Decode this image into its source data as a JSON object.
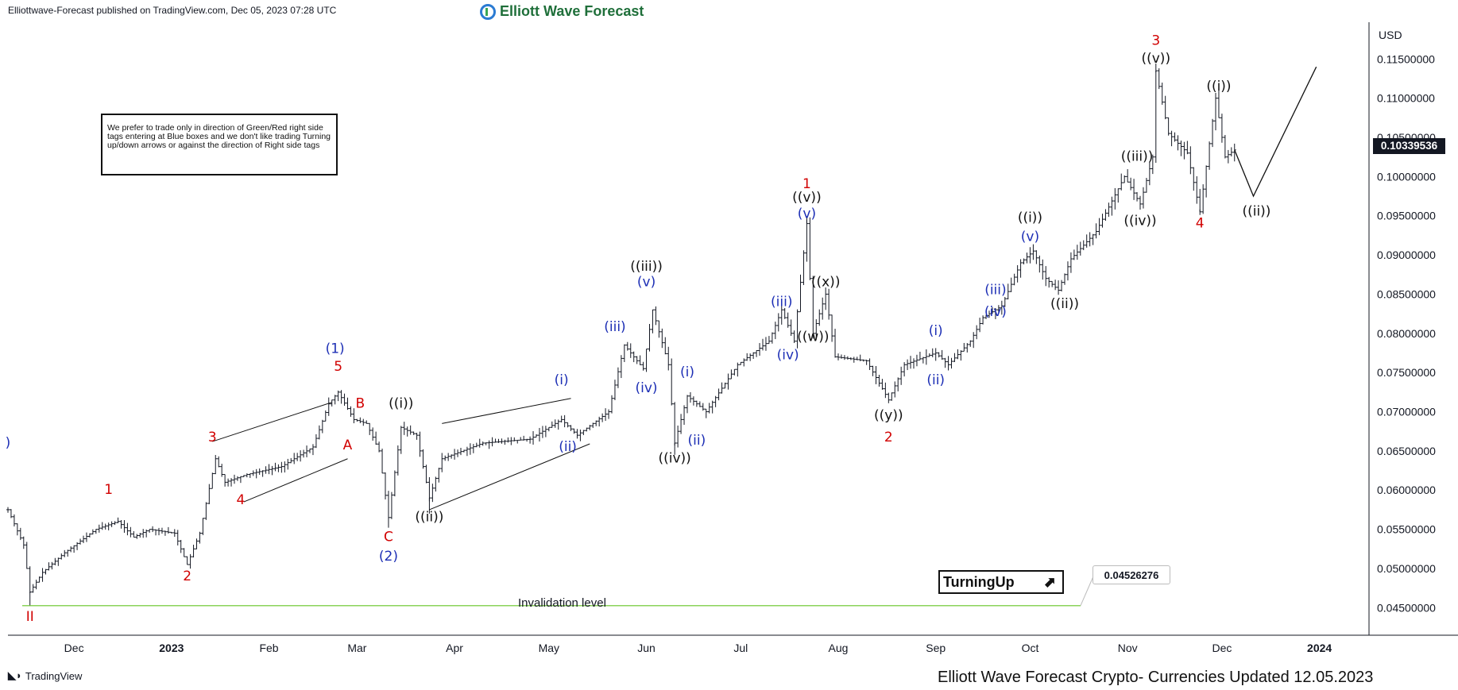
{
  "header": {
    "published_text": "Elliottwave-Forecast published on TradingView.com, Dec 05, 2023 07:28 UTC",
    "logo_text": "Elliott Wave Forecast"
  },
  "note_text": "We prefer to trade only in direction of Green/Red right side tags entering at Blue boxes and we don't like trading Turning up/down arrows or against the direction of Right side tags",
  "turning_label": "TurningUp",
  "invalidation": {
    "label": "Invalidation level",
    "value": "0.04526276",
    "color": "#8bd35a"
  },
  "current_price": "0.10339536",
  "footer": {
    "tradingview": "TradingView",
    "updated": "Elliott Wave Forecast Crypto- Currencies Updated 12.05.2023"
  },
  "colors": {
    "red": "#d10000",
    "blue": "#1d2fb5",
    "black": "#111111",
    "bars": "#131722"
  },
  "chart_data": {
    "type": "ohlc",
    "currency": "USD",
    "y_ticks": [
      "0.11500000",
      "0.11000000",
      "0.10500000",
      "0.10000000",
      "0.09500000",
      "0.09000000",
      "0.08500000",
      "0.08000000",
      "0.07500000",
      "0.07000000",
      "0.06500000",
      "0.06000000",
      "0.05500000",
      "0.05000000",
      "0.04500000"
    ],
    "ylim": [
      0.0425,
      0.1205
    ],
    "x_ticks": [
      {
        "label": "Dec",
        "date": "2022-12-01",
        "bold": false
      },
      {
        "label": "2023",
        "date": "2023-01-01",
        "bold": true
      },
      {
        "label": "Feb",
        "date": "2023-02-01",
        "bold": false
      },
      {
        "label": "Mar",
        "date": "2023-03-01",
        "bold": false
      },
      {
        "label": "Apr",
        "date": "2023-04-01",
        "bold": false
      },
      {
        "label": "May",
        "date": "2023-05-01",
        "bold": false
      },
      {
        "label": "Jun",
        "date": "2023-06-01",
        "bold": false
      },
      {
        "label": "Jul",
        "date": "2023-07-01",
        "bold": false
      },
      {
        "label": "Aug",
        "date": "2023-08-01",
        "bold": false
      },
      {
        "label": "Sep",
        "date": "2023-09-01",
        "bold": false
      },
      {
        "label": "Oct",
        "date": "2023-10-01",
        "bold": false
      },
      {
        "label": "Nov",
        "date": "2023-11-01",
        "bold": false
      },
      {
        "label": "Dec",
        "date": "2023-12-01",
        "bold": false
      },
      {
        "label": "2024",
        "date": "2024-01-01",
        "bold": true
      }
    ],
    "price_path": [
      [
        "2022-11-10",
        0.0575
      ],
      [
        "2022-11-15",
        0.053
      ],
      [
        "2022-11-17",
        0.047
      ],
      [
        "2022-11-21",
        0.0495
      ],
      [
        "2022-11-28",
        0.052
      ],
      [
        "2022-12-08",
        0.055
      ],
      [
        "2022-12-15",
        0.056
      ],
      [
        "2022-12-20",
        0.054
      ],
      [
        "2022-12-25",
        0.055
      ],
      [
        "2023-01-02",
        0.0545
      ],
      [
        "2023-01-06",
        0.0505
      ],
      [
        "2023-01-10",
        0.0545
      ],
      [
        "2023-01-15",
        0.064
      ],
      [
        "2023-01-18",
        0.061
      ],
      [
        "2023-01-25",
        0.062
      ],
      [
        "2023-02-05",
        0.063
      ],
      [
        "2023-02-15",
        0.0655
      ],
      [
        "2023-02-20",
        0.071
      ],
      [
        "2023-02-23",
        0.0725
      ],
      [
        "2023-02-28",
        0.069
      ],
      [
        "2023-03-04",
        0.0685
      ],
      [
        "2023-03-08",
        0.065
      ],
      [
        "2023-03-11",
        0.0565
      ],
      [
        "2023-03-15",
        0.068
      ],
      [
        "2023-03-20",
        0.067
      ],
      [
        "2023-03-24",
        0.059
      ],
      [
        "2023-03-28",
        0.064
      ],
      [
        "2023-04-10",
        0.066
      ],
      [
        "2023-04-25",
        0.0665
      ],
      [
        "2023-05-05",
        0.069
      ],
      [
        "2023-05-10",
        0.067
      ],
      [
        "2023-05-20",
        0.07
      ],
      [
        "2023-05-25",
        0.0785
      ],
      [
        "2023-05-31",
        0.0755
      ],
      [
        "2023-06-03",
        0.083
      ],
      [
        "2023-06-08",
        0.076
      ],
      [
        "2023-06-10",
        0.066
      ],
      [
        "2023-06-14",
        0.072
      ],
      [
        "2023-06-20",
        0.07
      ],
      [
        "2023-06-30",
        0.076
      ],
      [
        "2023-07-10",
        0.079
      ],
      [
        "2023-07-14",
        0.083
      ],
      [
        "2023-07-18",
        0.079
      ],
      [
        "2023-07-22",
        0.094
      ],
      [
        "2023-07-24",
        0.08
      ],
      [
        "2023-07-28",
        0.085
      ],
      [
        "2023-07-31",
        0.077
      ],
      [
        "2023-08-10",
        0.0765
      ],
      [
        "2023-08-17",
        0.0715
      ],
      [
        "2023-08-22",
        0.076
      ],
      [
        "2023-09-01",
        0.0775
      ],
      [
        "2023-09-05",
        0.076
      ],
      [
        "2023-09-12",
        0.079
      ],
      [
        "2023-09-16",
        0.082
      ],
      [
        "2023-09-22",
        0.0835
      ],
      [
        "2023-09-28",
        0.089
      ],
      [
        "2023-10-02",
        0.0905
      ],
      [
        "2023-10-06",
        0.087
      ],
      [
        "2023-10-10",
        0.0855
      ],
      [
        "2023-10-14",
        0.0895
      ],
      [
        "2023-10-22",
        0.093
      ],
      [
        "2023-10-31",
        0.1
      ],
      [
        "2023-11-05",
        0.0965
      ],
      [
        "2023-11-09",
        0.1025
      ],
      [
        "2023-11-10",
        0.1135
      ],
      [
        "2023-11-14",
        0.1055
      ],
      [
        "2023-11-20",
        0.103
      ],
      [
        "2023-11-24",
        0.0955
      ],
      [
        "2023-11-29",
        0.11
      ],
      [
        "2023-12-02",
        0.1025
      ],
      [
        "2023-12-05",
        0.1034
      ]
    ],
    "projection": [
      [
        "2023-12-05",
        0.1034
      ],
      [
        "2023-12-11",
        0.0975
      ],
      [
        "2023-12-31",
        0.114
      ]
    ],
    "wave_labels": [
      {
        "t": "2022-11-10",
        "p": 0.0655,
        "text": ")",
        "c": "blue"
      },
      {
        "t": "2022-11-17",
        "p": 0.0433,
        "text": "II",
        "c": "red"
      },
      {
        "t": "2022-12-12",
        "p": 0.0595,
        "text": "1",
        "c": "red"
      },
      {
        "t": "2023-01-06",
        "p": 0.0485,
        "text": "2",
        "c": "red"
      },
      {
        "t": "2023-01-14",
        "p": 0.0662,
        "text": "3",
        "c": "red"
      },
      {
        "t": "2023-01-23",
        "p": 0.0582,
        "text": "4",
        "c": "red"
      },
      {
        "t": "2023-02-22",
        "p": 0.0775,
        "text": "(1)",
        "c": "blue"
      },
      {
        "t": "2023-02-23",
        "p": 0.0752,
        "text": "5",
        "c": "red"
      },
      {
        "t": "2023-03-02",
        "p": 0.0705,
        "text": "B",
        "c": "red"
      },
      {
        "t": "2023-02-26",
        "p": 0.0652,
        "text": "A",
        "c": "red"
      },
      {
        "t": "2023-03-11",
        "p": 0.0535,
        "text": "C",
        "c": "red"
      },
      {
        "t": "2023-03-11",
        "p": 0.051,
        "text": "(2)",
        "c": "blue"
      },
      {
        "t": "2023-03-15",
        "p": 0.0705,
        "text": "((i))",
        "c": "black"
      },
      {
        "t": "2023-03-24",
        "p": 0.056,
        "text": "((ii))",
        "c": "black"
      },
      {
        "t": "2023-05-05",
        "p": 0.0735,
        "text": "(i)",
        "c": "blue"
      },
      {
        "t": "2023-05-07",
        "p": 0.065,
        "text": "(ii)",
        "c": "blue"
      },
      {
        "t": "2023-05-22",
        "p": 0.0803,
        "text": "(iii)",
        "c": "blue"
      },
      {
        "t": "2023-06-01",
        "p": 0.088,
        "text": "((iii))",
        "c": "black"
      },
      {
        "t": "2023-06-01",
        "p": 0.086,
        "text": "(v)",
        "c": "blue"
      },
      {
        "t": "2023-06-01",
        "p": 0.0725,
        "text": "(iv)",
        "c": "blue"
      },
      {
        "t": "2023-06-10",
        "p": 0.0635,
        "text": "((iv))",
        "c": "black"
      },
      {
        "t": "2023-06-14",
        "p": 0.0745,
        "text": "(i)",
        "c": "blue"
      },
      {
        "t": "2023-06-17",
        "p": 0.0658,
        "text": "(ii)",
        "c": "blue"
      },
      {
        "t": "2023-07-14",
        "p": 0.0835,
        "text": "(iii)",
        "c": "blue"
      },
      {
        "t": "2023-07-16",
        "p": 0.0767,
        "text": "(iv)",
        "c": "blue"
      },
      {
        "t": "2023-07-22",
        "p": 0.0985,
        "text": "1",
        "c": "red"
      },
      {
        "t": "2023-07-22",
        "p": 0.0968,
        "text": "((v))",
        "c": "black"
      },
      {
        "t": "2023-07-22",
        "p": 0.0947,
        "text": "(v)",
        "c": "blue"
      },
      {
        "t": "2023-07-28",
        "p": 0.086,
        "text": "((x))",
        "c": "black"
      },
      {
        "t": "2023-07-24",
        "p": 0.079,
        "text": "((w))",
        "c": "black"
      },
      {
        "t": "2023-08-17",
        "p": 0.069,
        "text": "((y))",
        "c": "black"
      },
      {
        "t": "2023-08-17",
        "p": 0.0662,
        "text": "2",
        "c": "red"
      },
      {
        "t": "2023-09-01",
        "p": 0.0798,
        "text": "(i)",
        "c": "blue"
      },
      {
        "t": "2023-09-01",
        "p": 0.0735,
        "text": "(ii)",
        "c": "blue"
      },
      {
        "t": "2023-09-20",
        "p": 0.085,
        "text": "(iii)",
        "c": "blue"
      },
      {
        "t": "2023-09-20",
        "p": 0.0822,
        "text": "(iv)",
        "c": "blue"
      },
      {
        "t": "2023-10-01",
        "p": 0.0942,
        "text": "((i))",
        "c": "black"
      },
      {
        "t": "2023-10-01",
        "p": 0.0918,
        "text": "(v)",
        "c": "blue"
      },
      {
        "t": "2023-10-12",
        "p": 0.0832,
        "text": "((ii))",
        "c": "black"
      },
      {
        "t": "2023-11-04",
        "p": 0.102,
        "text": "((iii))",
        "c": "black"
      },
      {
        "t": "2023-11-05",
        "p": 0.0938,
        "text": "((iv))",
        "c": "black"
      },
      {
        "t": "2023-11-10",
        "p": 0.1168,
        "text": "3",
        "c": "red"
      },
      {
        "t": "2023-11-10",
        "p": 0.1145,
        "text": "((v))",
        "c": "black"
      },
      {
        "t": "2023-11-24",
        "p": 0.0935,
        "text": "4",
        "c": "red"
      },
      {
        "t": "2023-11-30",
        "p": 0.111,
        "text": "((i))",
        "c": "black"
      },
      {
        "t": "2023-12-12",
        "p": 0.095,
        "text": "((ii))",
        "c": "black"
      }
    ],
    "channels": [
      {
        "a": [
          "2023-01-14",
          0.0662
        ],
        "b": [
          "2023-02-21",
          0.0712
        ]
      },
      {
        "a": [
          "2023-01-24",
          0.0585
        ],
        "b": [
          "2023-02-26",
          0.064
        ]
      },
      {
        "a": [
          "2023-03-28",
          0.0685
        ],
        "b": [
          "2023-05-08",
          0.0717
        ]
      },
      {
        "a": [
          "2023-03-24",
          0.0575
        ],
        "b": [
          "2023-05-14",
          0.0659
        ]
      }
    ]
  }
}
